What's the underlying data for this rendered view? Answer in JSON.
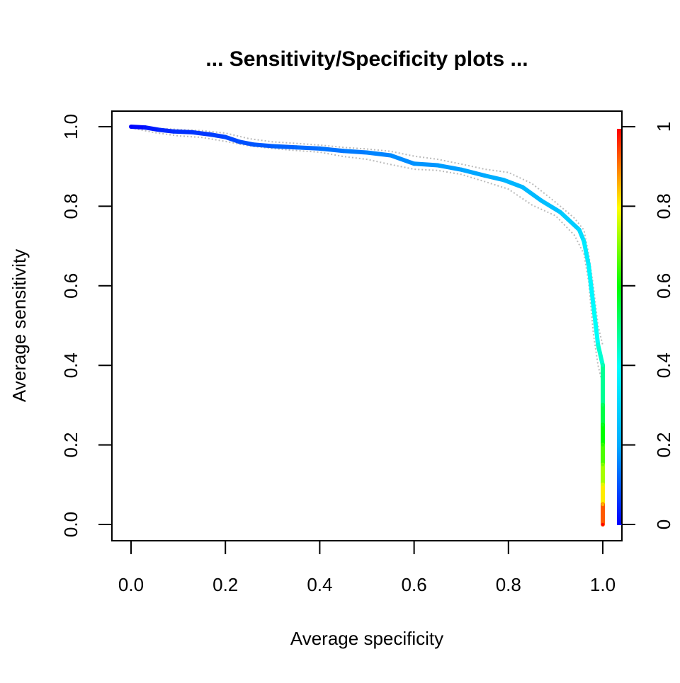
{
  "chart_data": {
    "type": "line",
    "title": "... Sensitivity/Specificity plots ...",
    "xlabel": "Average specificity",
    "ylabel": "Average sensitivity",
    "xlim": [
      0,
      1
    ],
    "ylim": [
      0,
      1
    ],
    "x_ticks": [
      "0.0",
      "0.2",
      "0.4",
      "0.6",
      "0.8",
      "1.0"
    ],
    "y_ticks": [
      "0.0",
      "0.2",
      "0.4",
      "0.6",
      "0.8",
      "1.0"
    ],
    "colorbar": {
      "range": [
        0,
        1
      ],
      "ticks": [
        "0",
        "0.2",
        "0.4",
        "0.6",
        "0.8",
        "1"
      ],
      "colors": [
        "#0000ff",
        "#00aaff",
        "#00ffff",
        "#00ff00",
        "#ffff00",
        "#ff0000"
      ]
    },
    "grid": false,
    "series": [
      {
        "x": [
          0.0,
          0.03,
          0.06,
          0.09,
          0.13,
          0.17,
          0.2,
          0.23,
          0.26,
          0.3,
          0.35,
          0.4,
          0.45,
          0.5,
          0.55,
          0.6,
          0.65,
          0.7,
          0.75,
          0.79,
          0.83,
          0.87,
          0.91,
          0.95,
          0.96,
          0.97,
          0.98,
          0.99,
          1.0,
          1.0,
          1.0,
          1.0,
          1.0,
          1.0,
          1.0,
          1.0
        ],
        "y": [
          1.0,
          0.998,
          0.992,
          0.988,
          0.986,
          0.98,
          0.974,
          0.962,
          0.955,
          0.951,
          0.948,
          0.945,
          0.939,
          0.935,
          0.928,
          0.907,
          0.903,
          0.892,
          0.877,
          0.866,
          0.848,
          0.814,
          0.785,
          0.741,
          0.712,
          0.652,
          0.551,
          0.451,
          0.4,
          0.3,
          0.25,
          0.2,
          0.15,
          0.1,
          0.05,
          0.0
        ],
        "cutoff": [
          0.0,
          0.02,
          0.04,
          0.05,
          0.06,
          0.07,
          0.08,
          0.09,
          0.1,
          0.11,
          0.12,
          0.13,
          0.14,
          0.15,
          0.16,
          0.17,
          0.18,
          0.19,
          0.2,
          0.22,
          0.23,
          0.24,
          0.26,
          0.3,
          0.34,
          0.37,
          0.39,
          0.42,
          0.45,
          0.52,
          0.57,
          0.63,
          0.69,
          0.77,
          0.86,
          1.0
        ]
      }
    ],
    "spread_lower": {
      "x": [
        0.0,
        0.05,
        0.1,
        0.15,
        0.2,
        0.25,
        0.3,
        0.35,
        0.4,
        0.45,
        0.5,
        0.55,
        0.6,
        0.65,
        0.7,
        0.75,
        0.8,
        0.85,
        0.9,
        0.94,
        0.96,
        0.97,
        0.98,
        0.99,
        1.0
      ],
      "y": [
        0.997,
        0.985,
        0.977,
        0.973,
        0.963,
        0.952,
        0.945,
        0.94,
        0.936,
        0.925,
        0.918,
        0.905,
        0.893,
        0.89,
        0.88,
        0.862,
        0.843,
        0.803,
        0.776,
        0.727,
        0.68,
        0.61,
        0.48,
        0.4,
        0.35
      ]
    },
    "spread_upper": {
      "x": [
        0.0,
        0.05,
        0.1,
        0.15,
        0.2,
        0.25,
        0.3,
        0.35,
        0.4,
        0.45,
        0.5,
        0.55,
        0.6,
        0.65,
        0.7,
        0.75,
        0.8,
        0.85,
        0.9,
        0.94,
        0.96,
        0.97,
        0.98,
        0.99,
        1.0
      ],
      "y": [
        1.0,
        0.996,
        0.993,
        0.99,
        0.984,
        0.97,
        0.962,
        0.958,
        0.954,
        0.948,
        0.944,
        0.938,
        0.926,
        0.918,
        0.906,
        0.893,
        0.885,
        0.857,
        0.81,
        0.77,
        0.74,
        0.68,
        0.6,
        0.5,
        0.45
      ]
    }
  }
}
